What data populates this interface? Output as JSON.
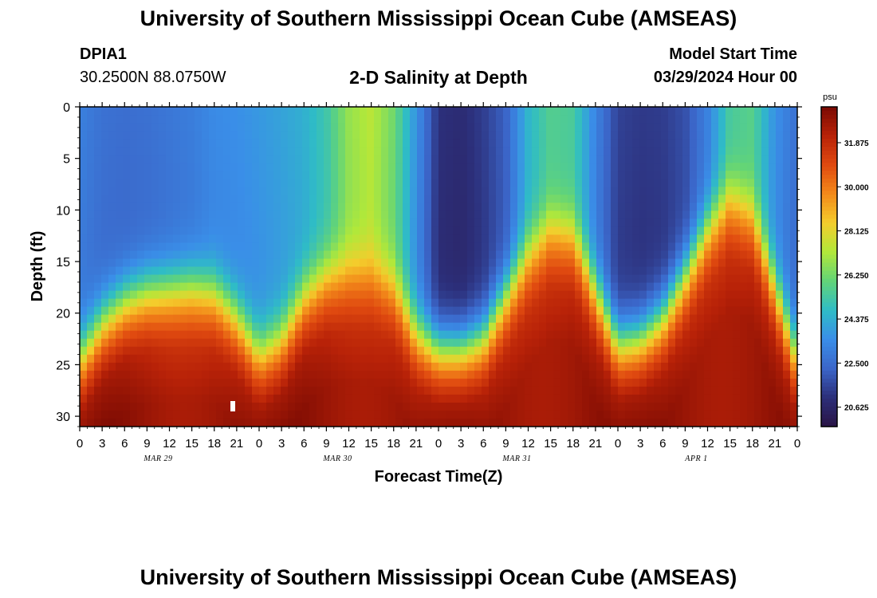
{
  "page": {
    "title_top": "University of Southern Mississippi Ocean Cube (AMSEAS)",
    "title_bottom": "University of Southern Mississippi Ocean Cube (AMSEAS)",
    "station_id": "DPIA1",
    "station_coords": "30.2500N  88.0750W",
    "plot_title": "2-D Salinity at Depth",
    "model_start_label": "Model Start Time",
    "model_start_value": "03/29/2024 Hour 00"
  },
  "colors": {
    "ramp": [
      "#2a1445",
      "#2c2f7a",
      "#3b66c9",
      "#3a8ee8",
      "#2fbcc6",
      "#62d478",
      "#b1e83a",
      "#f4cd2c",
      "#f38a1a",
      "#e04a10",
      "#b82208",
      "#7a0a03"
    ],
    "frame": "#000000",
    "marker": "#ffffff"
  },
  "chart_data": {
    "type": "heatmap",
    "title": "2-D Salinity at Depth",
    "xlabel": "Forecast Time(Z)",
    "ylabel": "Depth (ft)",
    "xlim": [
      0,
      96
    ],
    "ylim": [
      31,
      0
    ],
    "y_ticks": [
      "0",
      "5",
      "10",
      "15",
      "20",
      "25",
      "30"
    ],
    "x_tick_labels": [
      "0",
      "3",
      "6",
      "9",
      "12",
      "15",
      "18",
      "21",
      "0",
      "3",
      "6",
      "9",
      "12",
      "15",
      "18",
      "21",
      "0",
      "3",
      "6",
      "9",
      "12",
      "15",
      "18",
      "21",
      "0",
      "3",
      "6",
      "9",
      "12",
      "15",
      "18",
      "21",
      "0"
    ],
    "date_labels": [
      {
        "hour": 10.5,
        "text": "MAR 29"
      },
      {
        "hour": 34.5,
        "text": "MAR 30"
      },
      {
        "hour": 58.5,
        "text": "MAR 31"
      },
      {
        "hour": 82.5,
        "text": "APR 1"
      }
    ],
    "colorbar": {
      "unit": "psu",
      "range": [
        19.8,
        33.4
      ],
      "ticks": [
        "31.875",
        "30.000",
        "28.125",
        "26.250",
        "24.375",
        "22.500",
        "20.625"
      ]
    },
    "interface_depth_ft": {
      "hours": [
        0,
        3,
        6,
        9,
        12,
        15,
        18,
        21,
        24,
        27,
        30,
        33,
        36,
        39,
        42,
        45,
        48,
        51,
        54,
        57,
        60,
        63,
        66,
        69,
        72,
        75,
        78,
        81,
        84,
        87,
        90,
        93,
        96
      ],
      "depth": [
        24,
        20.5,
        18.5,
        17.6,
        17.4,
        17.2,
        17.6,
        20,
        23.5,
        22,
        18,
        16,
        15.5,
        15.5,
        17,
        21.5,
        23,
        23,
        22,
        18,
        14,
        11.5,
        12,
        17.5,
        22.5,
        22,
        20,
        16,
        11.5,
        8.5,
        10,
        17,
        24
      ]
    },
    "surface_salinity_psu": {
      "hours": [
        0,
        3,
        6,
        9,
        12,
        15,
        18,
        21,
        24,
        27,
        30,
        33,
        36,
        39,
        42,
        45,
        48,
        51,
        54,
        57,
        60,
        63,
        66,
        69,
        72,
        75,
        78,
        81,
        84,
        87,
        90,
        93,
        96
      ],
      "value": [
        22.8,
        22.4,
        22.3,
        22.4,
        22.6,
        22.8,
        23.2,
        23.3,
        23.5,
        23.8,
        24.2,
        25.0,
        26.6,
        27.2,
        26.0,
        23.4,
        20.8,
        20.6,
        21.1,
        22.0,
        24.4,
        25.5,
        25.3,
        23.0,
        21.2,
        21.0,
        21.1,
        21.6,
        23.0,
        25.3,
        25.6,
        23.4,
        22.3
      ]
    }
  }
}
